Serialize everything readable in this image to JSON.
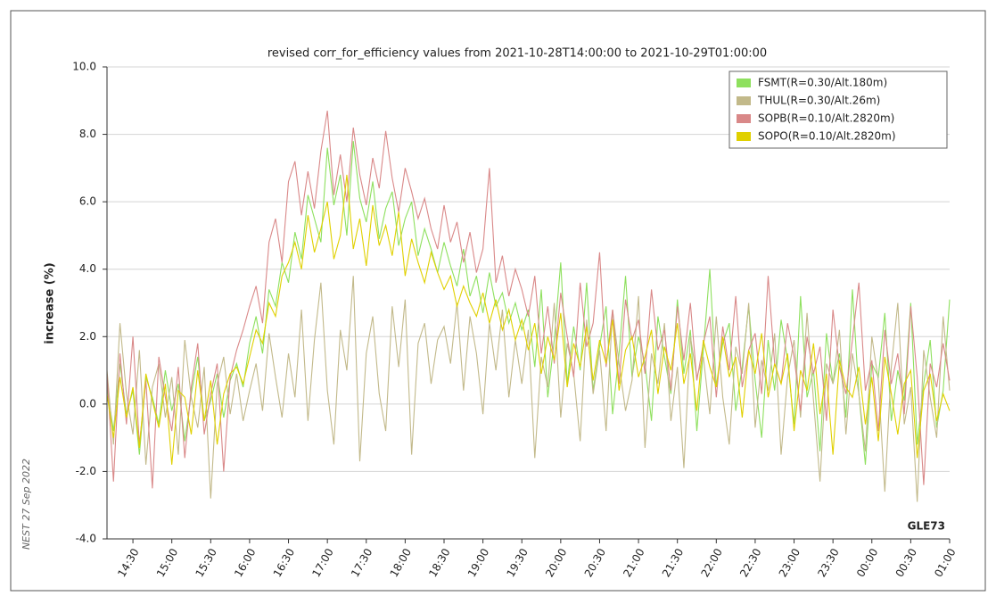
{
  "chart_data": {
    "type": "line",
    "title": "revised corr_for_efficiency values from 2021-10-28T14:00:00 to 2021-10-29T01:00:00",
    "ylabel": "increase (%)",
    "annotations": [
      "GLE73",
      "NEST  27 Sep 2022"
    ],
    "legend": "upper right",
    "grid": true,
    "ylim": [
      -4,
      10
    ],
    "yticks": [
      {
        "value": -4,
        "label": "-4.0"
      },
      {
        "value": -2,
        "label": "-2.0"
      },
      {
        "value": 0,
        "label": "0.0"
      },
      {
        "value": 2,
        "label": "2.0"
      },
      {
        "value": 4,
        "label": "4.0"
      },
      {
        "value": 6,
        "label": "6.0"
      },
      {
        "value": 8,
        "label": "8.0"
      },
      {
        "value": 10,
        "label": "10.0"
      }
    ],
    "xlim": [
      "14:10",
      "01:00"
    ],
    "xticks": [
      "14:30",
      "15:00",
      "15:30",
      "16:00",
      "16:30",
      "17:00",
      "17:30",
      "18:00",
      "18:30",
      "19:00",
      "19:30",
      "20:00",
      "20:30",
      "21:00",
      "21:30",
      "22:00",
      "22:30",
      "23:00",
      "23:30",
      "00:00",
      "00:30",
      "01:00"
    ],
    "x": [
      "14:10",
      "14:15",
      "14:20",
      "14:25",
      "14:30",
      "14:35",
      "14:40",
      "14:45",
      "14:50",
      "14:55",
      "15:00",
      "15:05",
      "15:10",
      "15:15",
      "15:20",
      "15:25",
      "15:30",
      "15:35",
      "15:40",
      "15:45",
      "15:50",
      "15:55",
      "16:00",
      "16:05",
      "16:10",
      "16:15",
      "16:20",
      "16:25",
      "16:30",
      "16:35",
      "16:40",
      "16:45",
      "16:50",
      "16:55",
      "17:00",
      "17:05",
      "17:10",
      "17:15",
      "17:20",
      "17:25",
      "17:30",
      "17:35",
      "17:40",
      "17:45",
      "17:50",
      "17:55",
      "18:00",
      "18:05",
      "18:10",
      "18:15",
      "18:20",
      "18:25",
      "18:30",
      "18:35",
      "18:40",
      "18:45",
      "18:50",
      "18:55",
      "19:00",
      "19:05",
      "19:10",
      "19:15",
      "19:20",
      "19:25",
      "19:30",
      "19:35",
      "19:40",
      "19:45",
      "19:50",
      "19:55",
      "20:00",
      "20:05",
      "20:10",
      "20:15",
      "20:20",
      "20:25",
      "20:30",
      "20:35",
      "20:40",
      "20:45",
      "20:50",
      "20:55",
      "21:00",
      "21:05",
      "21:10",
      "21:15",
      "21:20",
      "21:25",
      "21:30",
      "21:35",
      "21:40",
      "21:45",
      "21:50",
      "21:55",
      "22:00",
      "22:05",
      "22:10",
      "22:15",
      "22:20",
      "22:25",
      "22:30",
      "22:35",
      "22:40",
      "22:45",
      "22:50",
      "22:55",
      "23:00",
      "23:05",
      "23:10",
      "23:15",
      "23:20",
      "23:25",
      "23:30",
      "23:35",
      "23:40",
      "23:45",
      "23:50",
      "23:55",
      "00:00",
      "00:05",
      "00:10",
      "00:15",
      "00:20",
      "00:25",
      "00:30",
      "00:35",
      "00:40",
      "00:45",
      "00:50",
      "00:55",
      "01:00"
    ],
    "series": [
      {
        "name": "FSMT(R=0.30/Alt.180m)",
        "color": "#8ee05e",
        "values": [
          0.5,
          -0.8,
          1.2,
          -0.3,
          0.4,
          -1.5,
          0.8,
          0.2,
          -0.6,
          1.0,
          -0.2,
          0.6,
          -1.1,
          0.3,
          1.4,
          -0.5,
          0.1,
          0.9,
          -0.4,
          0.7,
          1.2,
          0.5,
          1.8,
          2.6,
          1.5,
          3.4,
          2.9,
          4.2,
          3.6,
          5.1,
          4.3,
          6.2,
          5.5,
          4.8,
          7.6,
          5.9,
          6.8,
          5.0,
          7.8,
          6.1,
          5.4,
          6.6,
          4.9,
          5.8,
          6.3,
          4.7,
          5.5,
          6.0,
          4.4,
          5.2,
          4.6,
          3.9,
          4.8,
          4.1,
          3.5,
          4.6,
          3.2,
          3.8,
          2.7,
          3.9,
          2.9,
          3.3,
          2.4,
          3.0,
          2.2,
          2.8,
          1.1,
          3.4,
          0.2,
          1.9,
          4.2,
          0.6,
          2.3,
          1.0,
          3.6,
          0.4,
          1.7,
          2.9,
          -0.3,
          1.5,
          3.8,
          0.8,
          2.0,
          1.2,
          -0.5,
          2.6,
          1.4,
          0.3,
          3.1,
          0.9,
          2.2,
          -0.8,
          1.6,
          4.0,
          0.5,
          1.8,
          2.4,
          -0.2,
          1.1,
          2.9,
          0.7,
          -1.0,
          1.9,
          0.4,
          2.5,
          1.3,
          -0.6,
          3.2,
          0.2,
          1.0,
          -1.4,
          2.1,
          0.6,
          1.5,
          -0.4,
          3.4,
          0.3,
          -1.8,
          1.2,
          0.8,
          2.7,
          -0.5,
          1.0,
          0.1,
          3.0,
          -1.2,
          0.6,
          1.9,
          -0.7,
          0.4,
          3.1
        ]
      },
      {
        "name": "THUL(R=0.30/Alt.26m)",
        "color": "#c2b98a",
        "values": [
          1.0,
          -1.2,
          2.4,
          0.3,
          -0.9,
          1.6,
          -1.8,
          0.5,
          1.2,
          -0.4,
          0.8,
          -1.5,
          1.9,
          0.2,
          -0.7,
          1.1,
          -2.8,
          0.6,
          1.4,
          -0.3,
          0.9,
          -0.5,
          0.4,
          1.2,
          -0.2,
          2.1,
          0.8,
          -0.4,
          1.5,
          0.2,
          2.8,
          -0.5,
          1.9,
          3.6,
          0.4,
          -1.2,
          2.2,
          1.0,
          3.8,
          -1.7,
          1.5,
          2.6,
          0.3,
          -0.8,
          2.9,
          1.1,
          3.1,
          -1.5,
          1.8,
          2.4,
          0.6,
          1.9,
          2.3,
          1.2,
          3.0,
          0.4,
          2.6,
          1.5,
          -0.3,
          2.4,
          1.0,
          2.8,
          0.2,
          1.9,
          0.6,
          2.2,
          -1.6,
          1.4,
          0.5,
          3.0,
          -0.4,
          1.8,
          0.9,
          -1.1,
          2.5,
          0.3,
          1.6,
          -0.8,
          2.8,
          1.2,
          -0.2,
          0.7,
          3.2,
          -1.3,
          1.5,
          0.6,
          2.4,
          -0.5,
          1.1,
          -1.9,
          2.0,
          0.8,
          1.4,
          -0.3,
          2.6,
          0.2,
          -1.2,
          1.7,
          0.9,
          3.0,
          -0.7,
          1.3,
          0.4,
          2.1,
          -1.5,
          0.8,
          1.9,
          -0.4,
          2.7,
          0.1,
          -2.3,
          1.2,
          0.6,
          2.2,
          -0.9,
          1.5,
          0.3,
          -1.4,
          2.0,
          0.7,
          -2.6,
          1.1,
          3.0,
          -0.6,
          0.5,
          -2.9,
          1.6,
          0.2,
          -1.0,
          2.6,
          0.4
        ]
      },
      {
        "name": "SOPB(R=0.10/Alt.2820m)",
        "color": "#d98888",
        "values": [
          0.9,
          -2.3,
          1.5,
          -0.6,
          2.0,
          -1.2,
          0.7,
          -2.5,
          1.4,
          0.2,
          -0.8,
          1.1,
          -1.6,
          0.5,
          1.8,
          -0.9,
          0.3,
          1.2,
          -2.0,
          0.8,
          1.6,
          2.2,
          2.9,
          3.5,
          2.4,
          4.8,
          5.5,
          4.2,
          6.6,
          7.2,
          5.6,
          6.9,
          5.8,
          7.5,
          8.7,
          6.2,
          7.4,
          6.0,
          8.2,
          6.8,
          5.9,
          7.3,
          6.4,
          8.1,
          6.7,
          5.7,
          7.0,
          6.3,
          5.5,
          6.1,
          5.2,
          4.6,
          5.9,
          4.8,
          5.4,
          4.2,
          5.1,
          3.9,
          4.6,
          7.0,
          3.6,
          4.4,
          3.2,
          4.0,
          3.4,
          2.6,
          3.8,
          1.5,
          2.9,
          1.2,
          3.3,
          2.0,
          0.8,
          3.6,
          1.7,
          2.4,
          4.5,
          1.1,
          2.8,
          0.6,
          3.1,
          1.9,
          2.5,
          0.9,
          3.4,
          1.6,
          2.2,
          0.4,
          2.9,
          1.3,
          3.0,
          0.7,
          1.8,
          2.6,
          0.2,
          2.3,
          1.0,
          3.2,
          0.5,
          1.6,
          2.1,
          0.3,
          3.8,
          1.2,
          0.6,
          2.4,
          1.4,
          -0.2,
          2.0,
          0.9,
          1.7,
          -0.5,
          2.8,
          1.1,
          0.3,
          1.9,
          3.6,
          0.4,
          1.3,
          -0.8,
          2.2,
          0.6,
          1.5,
          -0.3,
          2.9,
          0.8,
          -2.4,
          1.2,
          0.5,
          1.8,
          0.7
        ]
      },
      {
        "name": "SOPO(R=0.10/Alt.2820m)",
        "color": "#e0d000",
        "values": [
          0.3,
          -1.0,
          0.8,
          -0.4,
          0.5,
          -1.3,
          0.9,
          0.1,
          -0.7,
          0.6,
          -1.8,
          0.4,
          0.2,
          -0.9,
          1.0,
          -0.5,
          0.7,
          -1.2,
          0.3,
          0.9,
          1.1,
          0.6,
          1.4,
          2.2,
          1.8,
          3.0,
          2.6,
          3.8,
          4.2,
          4.8,
          4.0,
          5.6,
          4.5,
          5.2,
          6.0,
          4.3,
          5.0,
          6.8,
          4.6,
          5.5,
          4.1,
          5.9,
          4.7,
          5.3,
          4.4,
          5.7,
          3.8,
          4.9,
          4.2,
          3.6,
          4.5,
          3.9,
          3.4,
          3.8,
          2.9,
          3.5,
          3.0,
          2.6,
          3.3,
          2.4,
          3.1,
          2.2,
          2.8,
          1.9,
          2.5,
          1.6,
          2.4,
          0.9,
          2.0,
          1.3,
          2.7,
          0.5,
          1.8,
          1.1,
          2.3,
          0.7,
          1.9,
          1.2,
          2.5,
          0.4,
          1.6,
          2.0,
          0.8,
          1.4,
          2.2,
          0.3,
          1.7,
          1.0,
          2.4,
          0.6,
          1.5,
          -0.2,
          1.9,
          1.1,
          0.5,
          2.0,
          0.8,
          1.4,
          -0.4,
          1.6,
          0.9,
          2.1,
          0.2,
          1.2,
          0.6,
          1.5,
          -0.8,
          1.0,
          0.4,
          1.8,
          -0.3,
          0.9,
          -1.5,
          1.3,
          0.5,
          0.2,
          1.1,
          -0.6,
          0.8,
          -1.1,
          1.4,
          0.3,
          -0.9,
          0.6,
          1.0,
          -1.6,
          0.4,
          0.9,
          -0.5,
          0.3,
          -0.2
        ]
      }
    ]
  }
}
